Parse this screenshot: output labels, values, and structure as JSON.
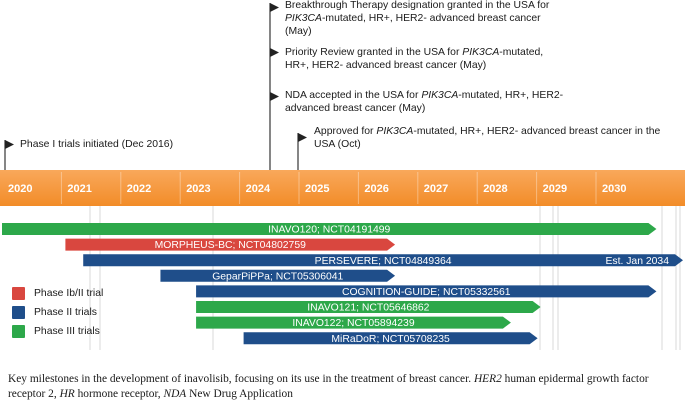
{
  "colors": {
    "axis_band": "#F28C28",
    "axis_band_light": "#F9A85B",
    "phase_ib_ii": "#D9473F",
    "phase_ii": "#1F4E8A",
    "phase_iii": "#2DA84A",
    "line": "#222222",
    "grid": "#d0d0d0"
  },
  "milestones": [
    {
      "id": "phase1",
      "before": "Phase I trials initiated (Dec 2016)",
      "italic": "",
      "after": ""
    },
    {
      "id": "btd",
      "before": "Breakthrough Therapy designation granted in the USA for ",
      "italic": "PIK3CA",
      "after": "-mutated, HR+, HER2- advanced breast cancer (May)"
    },
    {
      "id": "priority",
      "before": "Priority Review granted in the USA for ",
      "italic": "PIK3CA",
      "after": "-mutated, HR+, HER2- advanced breast cancer (May)"
    },
    {
      "id": "nda",
      "before": "NDA accepted in the USA for ",
      "italic": "PIK3CA",
      "after": "-mutated, HR+, HER2- advanced breast cancer (May)"
    },
    {
      "id": "approved",
      "before": "Approved for ",
      "italic": "PIK3CA",
      "after": "-mutated, HR+, HER2- advanced breast cancer in the USA (Oct)"
    }
  ],
  "chart_data": {
    "type": "timeline",
    "years": [
      "2020",
      "2021",
      "2022",
      "2023",
      "2024",
      "2025",
      "2026",
      "2027",
      "2028",
      "2029",
      "2030"
    ],
    "trials": [
      {
        "name": "INAVO120; NCT04191499",
        "phase": "Phase III",
        "start": 2019.7,
        "end": 2030.95
      },
      {
        "name": "MORPHEUS-BC; NCT04802759",
        "phase": "Phase Ib/II",
        "start": 2021.0,
        "end": 2026.55
      },
      {
        "name": "PERSEVERE; NCT04849364",
        "phase": "Phase II",
        "start": 2021.3,
        "end": 2034.0,
        "end_label": "Est. Jan 2034"
      },
      {
        "name": "GeparPiPPa; NCT05306041",
        "phase": "Phase II",
        "start": 2022.6,
        "end": 2026.55
      },
      {
        "name": "COGNITION-GUIDE; NCT05332561",
        "phase": "Phase II",
        "start": 2023.2,
        "end": 2030.95
      },
      {
        "name": "INAVO121; NCT05646862",
        "phase": "Phase III",
        "start": 2023.2,
        "end": 2029.0
      },
      {
        "name": "INAVO122; NCT05894239",
        "phase": "Phase III",
        "start": 2023.2,
        "end": 2028.5
      },
      {
        "name": "MiRaDoR; NCT05708235",
        "phase": "Phase II",
        "start": 2024.0,
        "end": 2028.95
      }
    ],
    "legend": [
      {
        "label": "Phase Ib/II trial",
        "color": "#D9473F"
      },
      {
        "label": "Phase II trials",
        "color": "#1F4E8A"
      },
      {
        "label": "Phase III trials",
        "color": "#2DA84A"
      }
    ]
  },
  "caption": {
    "before": "Key milestones in the development of inavolisib, focusing on its use in the treatment of breast cancer. ",
    "t1": "HER2",
    "mid1": " human epidermal growth factor receptor 2, ",
    "t2": "HR",
    "mid2": " hormone receptor, ",
    "t3": "NDA",
    "after": " New Drug Application"
  }
}
